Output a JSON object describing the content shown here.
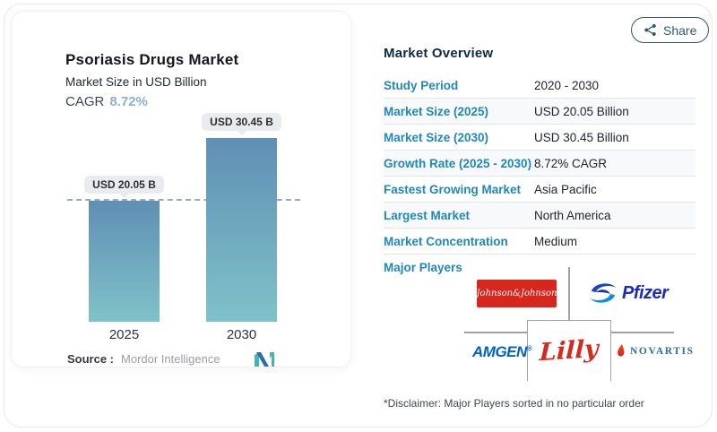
{
  "share": {
    "label": "Share"
  },
  "chart": {
    "title": "Psoriasis Drugs Market",
    "subtitle": "Market Size in USD Billion",
    "cagr_label": "CAGR",
    "cagr_value": "8.72%",
    "source_label": "Source :",
    "source_value": "Mordor Intelligence"
  },
  "chart_data": {
    "type": "bar",
    "title": "Psoriasis Drugs Market",
    "subtitle": "Market Size in USD Billion",
    "categories": [
      "2025",
      "2030"
    ],
    "values": [
      20.05,
      30.45
    ],
    "bar_labels": [
      "USD 20.05 B",
      "USD 30.45 B"
    ],
    "cagr": "8.72%",
    "ylim": [
      0,
      35
    ],
    "reference_line": 20.05,
    "grid": false,
    "bar_gradient": [
      "#5f8fb4",
      "#80c2c9"
    ]
  },
  "overview": {
    "heading": "Market Overview",
    "rows": [
      {
        "label": "Study Period",
        "value": "2020 - 2030"
      },
      {
        "label": "Market Size (2025)",
        "value": "USD 20.05 Billion"
      },
      {
        "label": "Market Size (2030)",
        "value": "USD 30.45 Billion"
      },
      {
        "label": "Growth Rate (2025 - 2030)",
        "value": "8.72% CAGR"
      },
      {
        "label": "Fastest Growing Market",
        "value": "Asia Pacific"
      },
      {
        "label": "Largest Market",
        "value": "North America"
      },
      {
        "label": "Market Concentration",
        "value": "Medium"
      }
    ],
    "major_players_label": "Major Players",
    "players": {
      "jj": "Johnson&Johnson",
      "pfizer": "Pfizer",
      "amgen": "AMGEN",
      "lilly": "Lilly",
      "novartis": "NOVARTIS"
    },
    "disclaimer": "*Disclaimer: Major Players sorted in no particular order"
  },
  "colors": {
    "row_label_blue": "#1f88bb",
    "cagr_blue": "#8fb0d5",
    "share_teal": "#2d5a74",
    "jj_red": "#d7261d",
    "pfizer_blue": "#1d2bc0",
    "amgen_blue": "#0063c3",
    "lilly_red": "#d52b1e",
    "novartis_blue": "#2d6ca5",
    "mi_teal": "#45b5ad",
    "mi_blue": "#2b6cb4"
  }
}
